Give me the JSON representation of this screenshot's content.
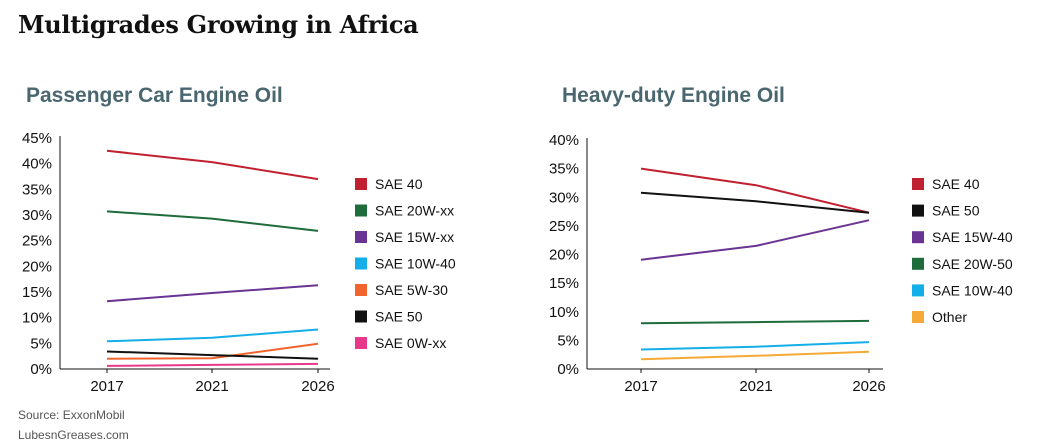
{
  "title": "Multigrades Growing in Africa",
  "footer": {
    "source": "Source: ExxonMobil",
    "site": "LubesnGreases.com"
  },
  "chart_data": [
    {
      "type": "line",
      "title": "Passenger Car Engine Oil",
      "x": [
        "2017",
        "2021",
        "2026"
      ],
      "yticks": [
        "0%",
        "5%",
        "10%",
        "15%",
        "20%",
        "25%",
        "30%",
        "35%",
        "40%",
        "45%"
      ],
      "ylim": [
        0,
        45
      ],
      "legend_position": "right",
      "series": [
        {
          "name": "SAE 40",
          "color": "#c0202f",
          "values": [
            42.5,
            40.3,
            37.0
          ]
        },
        {
          "name": "SAE 20W-xx",
          "color": "#1e6b3c",
          "values": [
            30.7,
            29.3,
            26.9
          ]
        },
        {
          "name": "SAE 15W-xx",
          "color": "#6a3494",
          "values": [
            13.2,
            14.8,
            16.3
          ]
        },
        {
          "name": "SAE 10W-40",
          "color": "#14aee8",
          "values": [
            5.4,
            6.1,
            7.7
          ]
        },
        {
          "name": "SAE 5W-30",
          "color": "#f2642d",
          "values": [
            2.0,
            2.1,
            4.9
          ]
        },
        {
          "name": "SAE 50",
          "color": "#111111",
          "values": [
            3.4,
            2.7,
            2.0
          ]
        },
        {
          "name": "SAE 0W-xx",
          "color": "#e8388a",
          "values": [
            0.6,
            0.8,
            1.0
          ]
        }
      ]
    },
    {
      "type": "line",
      "title": "Heavy-duty Engine Oil",
      "x": [
        "2017",
        "2021",
        "2026"
      ],
      "yticks": [
        "0%",
        "5%",
        "10%",
        "15%",
        "20%",
        "25%",
        "30%",
        "35%",
        "40%"
      ],
      "ylim": [
        0,
        40
      ],
      "legend_position": "right",
      "series": [
        {
          "name": "SAE 40",
          "color": "#c0202f",
          "values": [
            35.0,
            32.1,
            27.3
          ]
        },
        {
          "name": "SAE 50",
          "color": "#111111",
          "values": [
            30.8,
            29.3,
            27.3
          ]
        },
        {
          "name": "SAE 15W-40",
          "color": "#6a3494",
          "values": [
            19.1,
            21.5,
            26.0
          ]
        },
        {
          "name": "SAE 20W-50",
          "color": "#1e6b3c",
          "values": [
            8.0,
            8.2,
            8.4
          ]
        },
        {
          "name": "SAE 10W-40",
          "color": "#14aee8",
          "values": [
            3.4,
            3.9,
            4.7
          ]
        },
        {
          "name": "Other",
          "color": "#f5a936",
          "values": [
            1.7,
            2.3,
            3.0
          ]
        }
      ]
    }
  ]
}
